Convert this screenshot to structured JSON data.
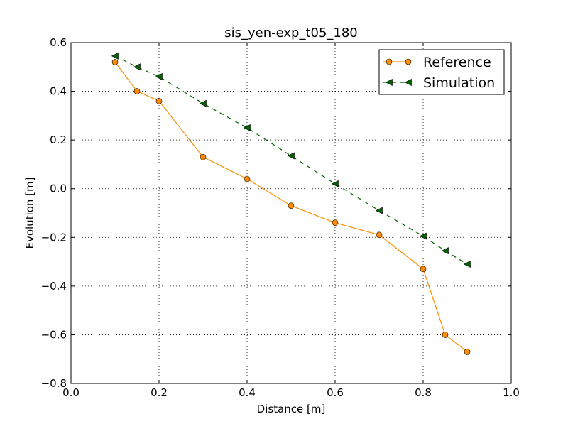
{
  "chart_data": {
    "type": "line",
    "title": "sis_yen-exp_t05_180",
    "xlabel": "Distance [m]",
    "ylabel": "Evolution [m]",
    "xlim": [
      0.0,
      1.0
    ],
    "ylim": [
      -0.8,
      0.6
    ],
    "grid": true,
    "legend_position": "top-right",
    "xticks": [
      "0.0",
      "0.2",
      "0.4",
      "0.6",
      "0.8",
      "1.0"
    ],
    "yticks": [
      "0.6",
      "0.4",
      "0.2",
      "0.0",
      "−0.2",
      "−0.4",
      "−0.6",
      "−0.8"
    ],
    "series": [
      {
        "name": "Reference",
        "color": "#ff8c00",
        "marker": "circle",
        "linestyle": "solid",
        "x": [
          0.1,
          0.15,
          0.2,
          0.3,
          0.4,
          0.5,
          0.6,
          0.7,
          0.8,
          0.85,
          0.9
        ],
        "y": [
          0.52,
          0.4,
          0.36,
          0.13,
          0.04,
          -0.07,
          -0.14,
          -0.19,
          -0.33,
          -0.6,
          -0.67
        ]
      },
      {
        "name": "Simulation",
        "color": "#006400",
        "marker": "triangle-left",
        "linestyle": "dashed",
        "x": [
          0.1,
          0.15,
          0.2,
          0.3,
          0.4,
          0.5,
          0.6,
          0.7,
          0.8,
          0.85,
          0.9
        ],
        "y": [
          0.545,
          0.5,
          0.46,
          0.35,
          0.25,
          0.135,
          0.02,
          -0.09,
          -0.195,
          -0.255,
          -0.31
        ]
      }
    ]
  }
}
